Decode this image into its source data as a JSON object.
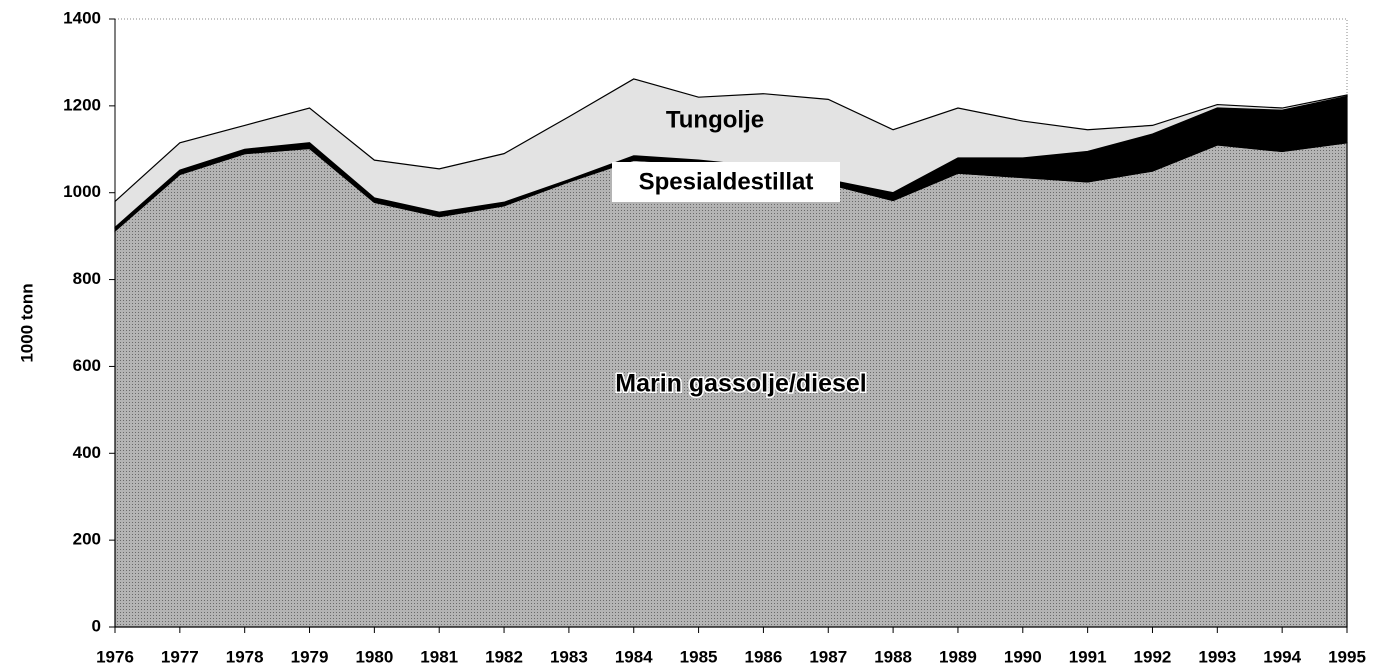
{
  "chart_data": {
    "type": "stacked_area",
    "y_label": "1000 tonn",
    "categories": [
      "1976",
      "1977",
      "1978",
      "1979",
      "1980",
      "1981",
      "1982",
      "1983",
      "1984",
      "1985",
      "1986",
      "1987",
      "1988",
      "1989",
      "1990",
      "1991",
      "1992",
      "1993",
      "1994",
      "1995"
    ],
    "series": [
      {
        "name": "Marin gassolje/diesel",
        "color": "#a9a9a9",
        "values": [
          912,
          1042,
          1090,
          1102,
          978,
          945,
          970,
          1025,
          1075,
          1065,
          1050,
          1020,
          982,
          1045,
          1035,
          1025,
          1050,
          1110,
          1095,
          1115
        ]
      },
      {
        "name": "Spesialdestillat",
        "color": "#000000",
        "values": [
          8,
          10,
          10,
          13,
          10,
          10,
          8,
          5,
          10,
          10,
          10,
          10,
          18,
          35,
          45,
          70,
          85,
          85,
          95,
          107
        ]
      },
      {
        "name": "Tungolje",
        "color": "#e3e3e3",
        "values": [
          60,
          63,
          55,
          80,
          87,
          100,
          112,
          145,
          177,
          145,
          168,
          185,
          145,
          115,
          85,
          50,
          20,
          8,
          5,
          3
        ]
      }
    ],
    "ylim": [
      0,
      1400
    ],
    "yticks": [
      0,
      200,
      400,
      600,
      800,
      1000,
      1200,
      1400
    ]
  }
}
